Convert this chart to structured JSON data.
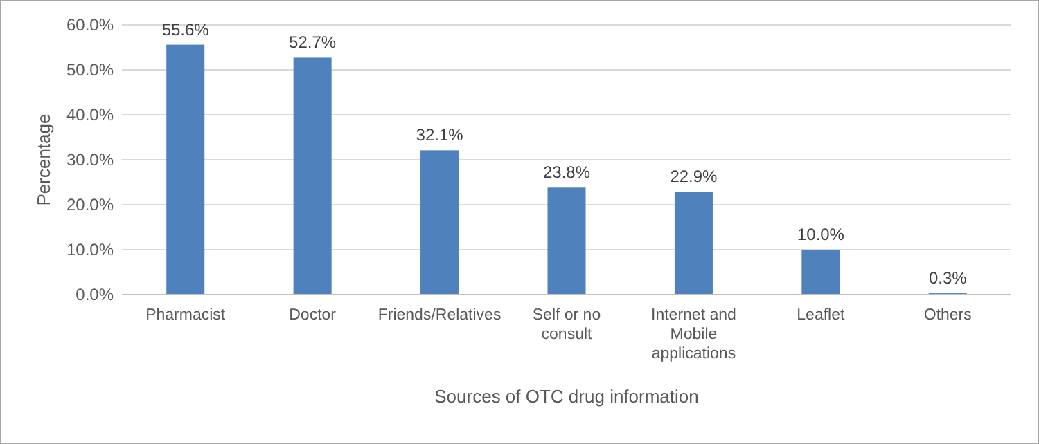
{
  "chart_data": {
    "type": "bar",
    "xlabel": "Sources of OTC drug information",
    "ylabel": "Percentage",
    "categories": [
      "Pharmacist",
      "Doctor",
      "Friends/Relatives",
      "Self or no consult",
      "Internet and Mobile applications",
      "Leaflet",
      "Others"
    ],
    "values": [
      55.6,
      52.7,
      32.1,
      23.8,
      22.9,
      10.0,
      0.3
    ],
    "value_labels": [
      "55.6%",
      "52.7%",
      "32.1%",
      "23.8%",
      "22.9%",
      "10.0%",
      "0.3%"
    ],
    "color": "#4f81bd",
    "ylim": [
      0,
      60
    ],
    "yticks": [
      {
        "value": 0,
        "label": "0.0%"
      },
      {
        "value": 10,
        "label": "10.0%"
      },
      {
        "value": 20,
        "label": "20.0%"
      },
      {
        "value": 30,
        "label": "30.0%"
      },
      {
        "value": 40,
        "label": "40.0%"
      },
      {
        "value": 50,
        "label": "50.0%"
      },
      {
        "value": 60,
        "label": "60.0%"
      }
    ],
    "grid": "y"
  }
}
